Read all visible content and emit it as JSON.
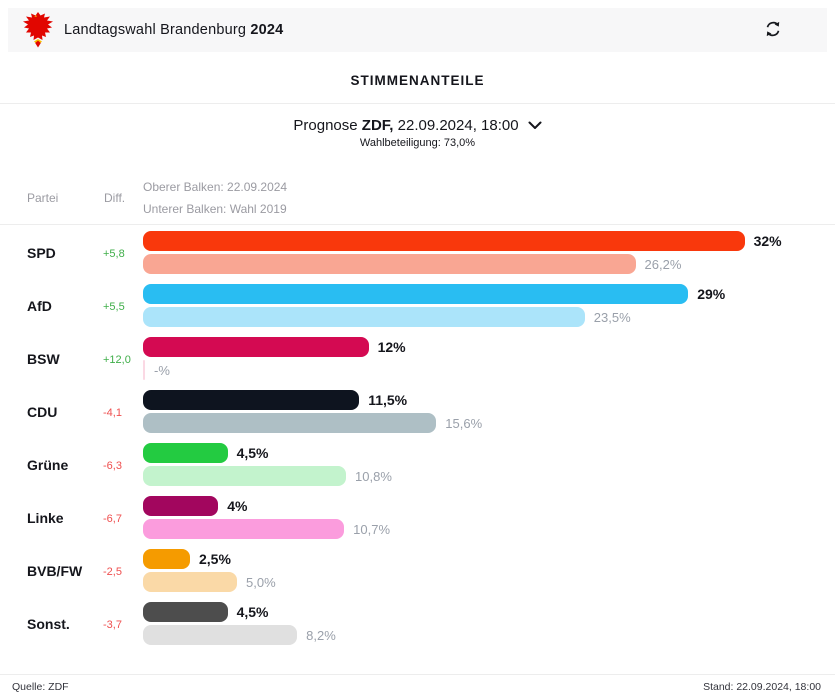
{
  "header": {
    "title_regular": "Landtagswahl Brandenburg",
    "title_bold": "2024"
  },
  "section": {
    "title": "STIMMENANTEILE"
  },
  "prognose": {
    "prefix": "Prognose",
    "source_bold": "ZDF,",
    "datetime": "22.09.2024, 18:00",
    "turnout": "Wahlbeteiligung: 73,0%"
  },
  "legend": {
    "col_party": "Partei",
    "col_diff": "Diff.",
    "upper": "Oberer Balken: 22.09.2024",
    "lower": "Unterer Balken: Wahl 2019"
  },
  "footer": {
    "source": "Quelle: ZDF",
    "stand": "Stand: 22.09.2024, 18:00"
  },
  "colors": {
    "diff_positive": "#3fae49",
    "diff_negative": "#ef4f4f",
    "topbar_bg": "#f7f7f8",
    "logo_red": "#e10600",
    "logo_gold": "#f8c300"
  },
  "chart_data": {
    "type": "bar",
    "title": "STIMMENANTEILE",
    "subtitle": "Prognose ZDF, 22.09.2024, 18:00",
    "turnout": "Wahlbeteiligung: 73,0%",
    "upper_bar_meaning": "22.09.2024",
    "lower_bar_meaning": "Wahl 2019",
    "unit": "%",
    "xlim": [
      0,
      33
    ],
    "rows": [
      {
        "party": "SPD",
        "diff": "+5,8",
        "value_2024": 32,
        "label_2024": "32%",
        "value_2019": 26.2,
        "label_2019": "26,2%",
        "color_2024": "#f9380c",
        "color_2019": "#f9a693"
      },
      {
        "party": "AfD",
        "diff": "+5,5",
        "value_2024": 29,
        "label_2024": "29%",
        "value_2019": 23.5,
        "label_2019": "23,5%",
        "color_2024": "#29bdf2",
        "color_2019": "#abe4fa"
      },
      {
        "party": "BSW",
        "diff": "+12,0",
        "value_2024": 12,
        "label_2024": "12%",
        "value_2019": null,
        "label_2019": "-%",
        "color_2024": "#d40a52",
        "color_2019": "#fbd9e4"
      },
      {
        "party": "CDU",
        "diff": "-4,1",
        "value_2024": 11.5,
        "label_2024": "11,5%",
        "value_2019": 15.6,
        "label_2019": "15,6%",
        "color_2024": "#0e141f",
        "color_2019": "#aebfc5"
      },
      {
        "party": "Grüne",
        "diff": "-6,3",
        "value_2024": 4.5,
        "label_2024": "4,5%",
        "value_2019": 10.8,
        "label_2019": "10,8%",
        "color_2024": "#23cb41",
        "color_2019": "#c3f3cd"
      },
      {
        "party": "Linke",
        "diff": "-6,7",
        "value_2024": 4,
        "label_2024": "4%",
        "value_2019": 10.7,
        "label_2019": "10,7%",
        "color_2024": "#a2065e",
        "color_2019": "#fb9cdd"
      },
      {
        "party": "BVB/FW",
        "diff": "-2,5",
        "value_2024": 2.5,
        "label_2024": "2,5%",
        "value_2019": 5.0,
        "label_2019": "5,0%",
        "color_2024": "#f59b00",
        "color_2019": "#fad9a7"
      },
      {
        "party": "Sonst.",
        "diff": "-3,7",
        "value_2024": 4.5,
        "label_2024": "4,5%",
        "value_2019": 8.2,
        "label_2019": "8,2%",
        "color_2024": "#4d4d4d",
        "color_2019": "#e0e0e0"
      }
    ]
  }
}
